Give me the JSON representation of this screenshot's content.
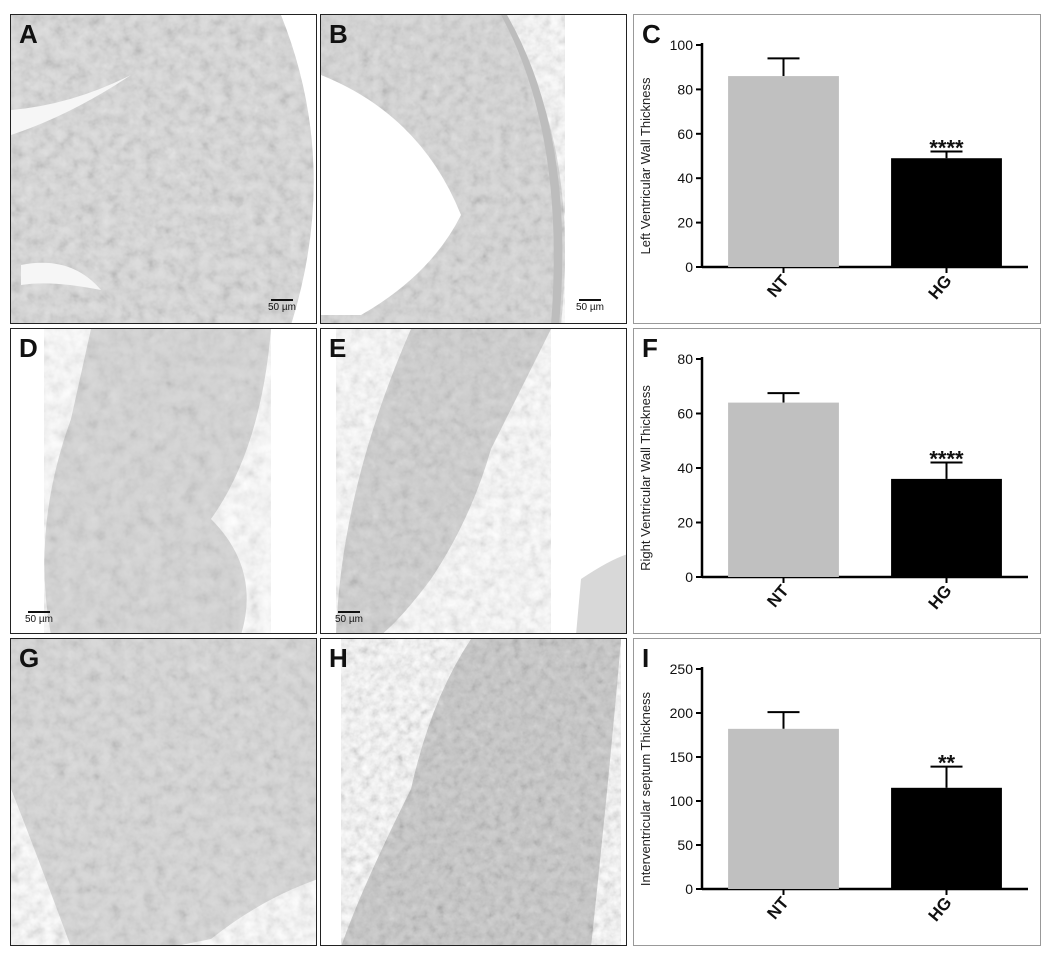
{
  "figure": {
    "panels": [
      {
        "letter": "A",
        "scale": "50 µm"
      },
      {
        "letter": "B",
        "scale": "50 µm"
      },
      {
        "letter": "D",
        "scale": "50 µm"
      },
      {
        "letter": "E",
        "scale": "50 µm"
      },
      {
        "letter": "G",
        "scale": ""
      },
      {
        "letter": "H",
        "scale": ""
      }
    ]
  },
  "chart_data": [
    {
      "letter": "C",
      "type": "bar",
      "categories": [
        "NT",
        "HG"
      ],
      "values": [
        86,
        49
      ],
      "errors": [
        8,
        3
      ],
      "significance": [
        "",
        "****"
      ],
      "ylabel": "Left Ventricular Wall Thickness",
      "ylim": [
        0,
        100
      ],
      "yticks": [
        0,
        20,
        40,
        60,
        80,
        100
      ],
      "colors": [
        "#c0c0c0",
        "#000000"
      ]
    },
    {
      "letter": "F",
      "type": "bar",
      "categories": [
        "NT",
        "HG"
      ],
      "values": [
        64,
        36
      ],
      "errors": [
        3.5,
        6
      ],
      "significance": [
        "",
        "****"
      ],
      "ylabel": "Right Ventricular Wall Thickness",
      "ylim": [
        0,
        80
      ],
      "yticks": [
        0,
        20,
        40,
        60,
        80
      ],
      "colors": [
        "#c0c0c0",
        "#000000"
      ]
    },
    {
      "letter": "I",
      "type": "bar",
      "categories": [
        "NT",
        "HG"
      ],
      "values": [
        182,
        115
      ],
      "errors": [
        19,
        24
      ],
      "significance": [
        "",
        "**"
      ],
      "ylabel": "Interventricular septum Thickness",
      "ylim": [
        0,
        250
      ],
      "yticks": [
        0,
        50,
        100,
        150,
        200,
        250
      ],
      "colors": [
        "#c0c0c0",
        "#000000"
      ]
    }
  ]
}
